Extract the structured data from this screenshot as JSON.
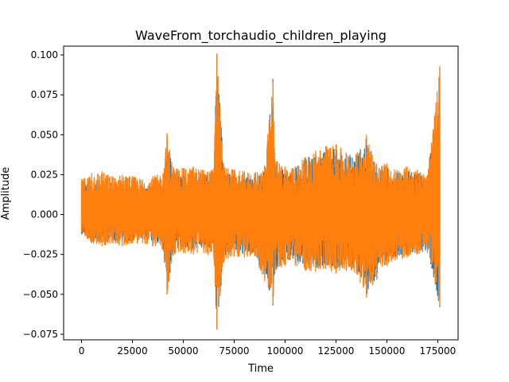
{
  "chart_data": {
    "type": "line",
    "title": "WaveFrom_torchaudio_children_playing",
    "xlabel": "Time",
    "ylabel": "Amplitude",
    "xlim": [
      -8800,
      185000
    ],
    "ylim": [
      -0.0785,
      0.1055
    ],
    "xticks": [
      0,
      25000,
      50000,
      75000,
      100000,
      125000,
      150000,
      175000
    ],
    "xtick_labels": [
      "0",
      "25000",
      "50000",
      "75000",
      "100000",
      "125000",
      "150000",
      "175000"
    ],
    "yticks": [
      -0.075,
      -0.05,
      -0.025,
      0.0,
      0.025,
      0.05,
      0.075,
      0.1
    ],
    "ytick_labels": [
      "−0.075",
      "−0.050",
      "−0.025",
      "0.000",
      "0.025",
      "0.050",
      "0.075",
      "0.100"
    ],
    "grid": false,
    "legend": "none",
    "series": [
      {
        "color": "#1f77b4",
        "envelope": {
          "x": [
            0,
            5000,
            10000,
            15000,
            20000,
            25000,
            30000,
            35000,
            40000,
            42000,
            45000,
            50000,
            55000,
            60000,
            65000,
            66500,
            70000,
            75000,
            80000,
            85000,
            90000,
            94000,
            95000,
            100000,
            105000,
            110000,
            115000,
            120000,
            125000,
            130000,
            135000,
            140000,
            145000,
            150000,
            155000,
            160000,
            165000,
            170000,
            176000
          ],
          "upper": [
            0.02,
            0.018,
            0.02,
            0.017,
            0.018,
            0.017,
            0.016,
            0.017,
            0.02,
            0.05,
            0.025,
            0.025,
            0.026,
            0.025,
            0.026,
            0.1,
            0.028,
            0.025,
            0.024,
            0.022,
            0.03,
            0.085,
            0.032,
            0.028,
            0.029,
            0.035,
            0.038,
            0.04,
            0.042,
            0.038,
            0.037,
            0.048,
            0.03,
            0.03,
            0.026,
            0.028,
            0.026,
            0.022,
            0.092
          ],
          "lower": [
            -0.012,
            -0.016,
            -0.018,
            -0.016,
            -0.017,
            -0.016,
            -0.015,
            -0.017,
            -0.019,
            -0.05,
            -0.024,
            -0.022,
            -0.023,
            -0.022,
            -0.025,
            -0.072,
            -0.027,
            -0.024,
            -0.025,
            -0.024,
            -0.04,
            -0.057,
            -0.035,
            -0.03,
            -0.03,
            -0.033,
            -0.034,
            -0.032,
            -0.035,
            -0.033,
            -0.035,
            -0.05,
            -0.04,
            -0.03,
            -0.026,
            -0.025,
            -0.023,
            -0.022,
            -0.058
          ]
        }
      },
      {
        "color": "#ff7f0e",
        "envelope": {
          "x": [
            0,
            5000,
            10000,
            15000,
            20000,
            25000,
            30000,
            35000,
            40000,
            42000,
            45000,
            50000,
            55000,
            60000,
            65000,
            66500,
            70000,
            75000,
            80000,
            85000,
            90000,
            94000,
            95000,
            100000,
            105000,
            110000,
            115000,
            120000,
            125000,
            130000,
            135000,
            140000,
            145000,
            150000,
            155000,
            160000,
            165000,
            170000,
            176000
          ],
          "upper": [
            0.022,
            0.026,
            0.027,
            0.024,
            0.025,
            0.024,
            0.022,
            0.024,
            0.026,
            0.051,
            0.03,
            0.029,
            0.03,
            0.028,
            0.029,
            0.101,
            0.03,
            0.028,
            0.027,
            0.026,
            0.031,
            0.083,
            0.035,
            0.03,
            0.03,
            0.036,
            0.04,
            0.043,
            0.044,
            0.039,
            0.038,
            0.05,
            0.032,
            0.032,
            0.028,
            0.03,
            0.028,
            0.025,
            0.093
          ],
          "lower": [
            -0.011,
            -0.018,
            -0.02,
            -0.018,
            -0.02,
            -0.018,
            -0.018,
            -0.02,
            -0.022,
            -0.05,
            -0.026,
            -0.024,
            -0.025,
            -0.024,
            -0.027,
            -0.072,
            -0.03,
            -0.026,
            -0.027,
            -0.026,
            -0.042,
            -0.056,
            -0.036,
            -0.032,
            -0.032,
            -0.035,
            -0.036,
            -0.034,
            -0.037,
            -0.035,
            -0.037,
            -0.052,
            -0.041,
            -0.032,
            -0.028,
            -0.027,
            -0.025,
            -0.024,
            -0.057
          ]
        }
      }
    ]
  }
}
